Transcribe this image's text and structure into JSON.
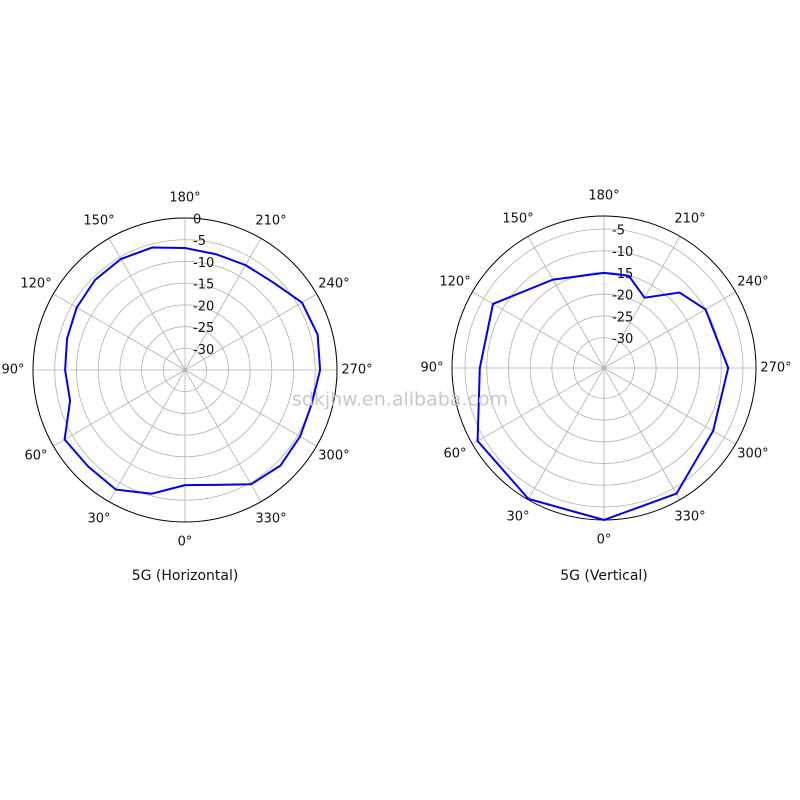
{
  "watermark": "sdkjhw.en.alibaba.com",
  "chart_data": [
    {
      "type": "polar",
      "title": "5G (Horizontal)",
      "color": "#0000ee",
      "theta": [
        0,
        15,
        30,
        45,
        60,
        75,
        90,
        105,
        120,
        135,
        150,
        165,
        180,
        195,
        210,
        225,
        240,
        255,
        270,
        285,
        300,
        315,
        330,
        345
      ],
      "values": [
        -8.5,
        -5.5,
        -3.2,
        -3.5,
        -3,
        -7.6,
        -7.4,
        -6.9,
        -6.2,
        -5.7,
        -5.5,
        -5.8,
        -6.9,
        -7.4,
        -7.1,
        -6.4,
        -3.9,
        -3.4,
        -3.9,
        -4.8,
        -4.4,
        -3.9,
        -4.6,
        -7.6
      ],
      "rlim": [
        -35,
        0
      ],
      "rticks": [
        0,
        -5,
        -10,
        -15,
        -20,
        -25,
        -30
      ],
      "thetaticks": [
        {
          "value": 0,
          "label": "0°"
        },
        {
          "value": 30,
          "label": "30°"
        },
        {
          "value": 60,
          "label": "60°"
        },
        {
          "value": 90,
          "label": "90°"
        },
        {
          "value": 120,
          "label": "120°"
        },
        {
          "value": 150,
          "label": "150°"
        },
        {
          "value": 180,
          "label": "180°"
        },
        {
          "value": 210,
          "label": "210°"
        },
        {
          "value": 240,
          "label": "240°"
        },
        {
          "value": 270,
          "label": "270°"
        },
        {
          "value": 300,
          "label": "300°"
        },
        {
          "value": 330,
          "label": "330°"
        }
      ]
    },
    {
      "type": "polar",
      "title": "5G (Vertical)",
      "color": "#0000ee",
      "theta": [
        0,
        30,
        60,
        90,
        120,
        150,
        180,
        195,
        210,
        225,
        240,
        270,
        300,
        330
      ],
      "values": [
        -2,
        -2.2,
        -3.4,
        -8.4,
        -7.5,
        -13.5,
        -15.1,
        -15,
        -18.3,
        -12.4,
        -10,
        -8.4,
        -8,
        -3.6
      ],
      "rlim": [
        -37,
        -2
      ],
      "rticks": [
        -5,
        -10,
        -15,
        -20,
        -25,
        -30
      ],
      "thetaticks": [
        {
          "value": 0,
          "label": "0°"
        },
        {
          "value": 30,
          "label": "30°"
        },
        {
          "value": 60,
          "label": "60°"
        },
        {
          "value": 90,
          "label": "90°"
        },
        {
          "value": 120,
          "label": "120°"
        },
        {
          "value": 150,
          "label": "150°"
        },
        {
          "value": 180,
          "label": "180°"
        },
        {
          "value": 210,
          "label": "210°"
        },
        {
          "value": 240,
          "label": "240°"
        },
        {
          "value": 270,
          "label": "270°"
        },
        {
          "value": 300,
          "label": "300°"
        },
        {
          "value": 330,
          "label": "330°"
        }
      ]
    }
  ]
}
